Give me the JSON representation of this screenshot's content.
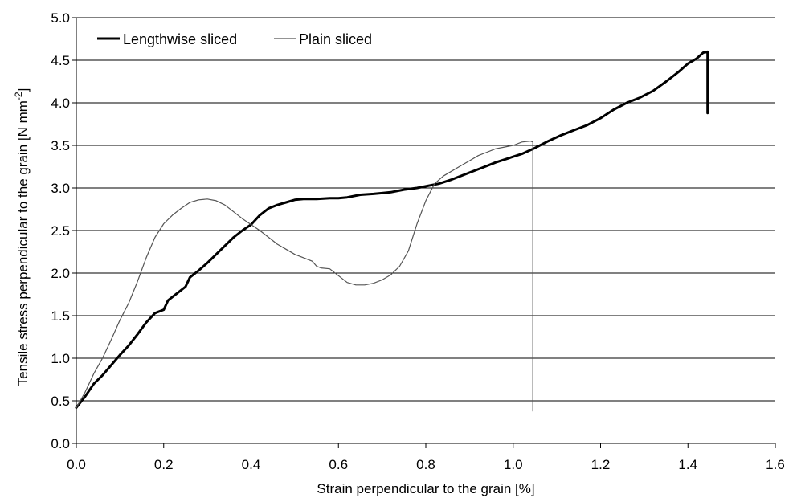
{
  "chart_data": {
    "type": "line",
    "xlabel": "Strain perpendicular to the grain [%]",
    "ylabel_main": "Tensile stress perpendicular to the grain [N mm",
    "ylabel_sup": "-2",
    "ylabel_end": "]",
    "xlim": [
      0,
      1.6
    ],
    "ylim": [
      0,
      5.0
    ],
    "x_ticks": [
      "0.0",
      "0.2",
      "0.4",
      "0.6",
      "0.8",
      "1.0",
      "1.2",
      "1.4",
      "1.6"
    ],
    "y_ticks": [
      "0.0",
      "0.5",
      "1.0",
      "1.5",
      "2.0",
      "2.5",
      "3.0",
      "3.5",
      "4.0",
      "4.5",
      "5.0"
    ],
    "grid": "horizontal",
    "legend_position": "top-left",
    "series": [
      {
        "name": "Lengthwise sliced",
        "color": "#000000",
        "style": "thick",
        "points": [
          [
            0.0,
            0.42
          ],
          [
            0.02,
            0.55
          ],
          [
            0.04,
            0.7
          ],
          [
            0.06,
            0.8
          ],
          [
            0.08,
            0.92
          ],
          [
            0.1,
            1.04
          ],
          [
            0.12,
            1.15
          ],
          [
            0.14,
            1.28
          ],
          [
            0.16,
            1.42
          ],
          [
            0.18,
            1.53
          ],
          [
            0.2,
            1.57
          ],
          [
            0.21,
            1.68
          ],
          [
            0.23,
            1.76
          ],
          [
            0.25,
            1.84
          ],
          [
            0.26,
            1.95
          ],
          [
            0.28,
            2.03
          ],
          [
            0.3,
            2.12
          ],
          [
            0.32,
            2.22
          ],
          [
            0.34,
            2.32
          ],
          [
            0.36,
            2.42
          ],
          [
            0.38,
            2.5
          ],
          [
            0.4,
            2.57
          ],
          [
            0.42,
            2.68
          ],
          [
            0.44,
            2.76
          ],
          [
            0.46,
            2.8
          ],
          [
            0.48,
            2.83
          ],
          [
            0.5,
            2.86
          ],
          [
            0.52,
            2.87
          ],
          [
            0.55,
            2.87
          ],
          [
            0.58,
            2.88
          ],
          [
            0.6,
            2.88
          ],
          [
            0.62,
            2.89
          ],
          [
            0.65,
            2.92
          ],
          [
            0.68,
            2.93
          ],
          [
            0.7,
            2.94
          ],
          [
            0.72,
            2.95
          ],
          [
            0.75,
            2.98
          ],
          [
            0.78,
            3.0
          ],
          [
            0.8,
            3.02
          ],
          [
            0.83,
            3.05
          ],
          [
            0.86,
            3.1
          ],
          [
            0.9,
            3.18
          ],
          [
            0.93,
            3.24
          ],
          [
            0.96,
            3.3
          ],
          [
            0.99,
            3.35
          ],
          [
            1.02,
            3.4
          ],
          [
            1.05,
            3.47
          ],
          [
            1.08,
            3.55
          ],
          [
            1.11,
            3.62
          ],
          [
            1.14,
            3.68
          ],
          [
            1.17,
            3.74
          ],
          [
            1.2,
            3.82
          ],
          [
            1.23,
            3.92
          ],
          [
            1.26,
            4.0
          ],
          [
            1.29,
            4.06
          ],
          [
            1.32,
            4.14
          ],
          [
            1.35,
            4.25
          ],
          [
            1.38,
            4.37
          ],
          [
            1.4,
            4.46
          ],
          [
            1.42,
            4.52
          ],
          [
            1.435,
            4.59
          ],
          [
            1.445,
            4.6
          ],
          [
            1.445,
            3.88
          ]
        ]
      },
      {
        "name": "Plain sliced",
        "color": "#555555",
        "style": "thin",
        "points": [
          [
            0.0,
            0.42
          ],
          [
            0.02,
            0.6
          ],
          [
            0.04,
            0.82
          ],
          [
            0.06,
            1.0
          ],
          [
            0.08,
            1.22
          ],
          [
            0.1,
            1.45
          ],
          [
            0.12,
            1.65
          ],
          [
            0.14,
            1.9
          ],
          [
            0.16,
            2.18
          ],
          [
            0.18,
            2.42
          ],
          [
            0.2,
            2.58
          ],
          [
            0.22,
            2.68
          ],
          [
            0.24,
            2.76
          ],
          [
            0.26,
            2.83
          ],
          [
            0.28,
            2.86
          ],
          [
            0.3,
            2.87
          ],
          [
            0.32,
            2.85
          ],
          [
            0.34,
            2.8
          ],
          [
            0.36,
            2.72
          ],
          [
            0.38,
            2.64
          ],
          [
            0.4,
            2.57
          ],
          [
            0.42,
            2.5
          ],
          [
            0.44,
            2.42
          ],
          [
            0.46,
            2.34
          ],
          [
            0.48,
            2.28
          ],
          [
            0.5,
            2.22
          ],
          [
            0.52,
            2.18
          ],
          [
            0.54,
            2.14
          ],
          [
            0.55,
            2.08
          ],
          [
            0.56,
            2.06
          ],
          [
            0.58,
            2.05
          ],
          [
            0.6,
            1.97
          ],
          [
            0.62,
            1.89
          ],
          [
            0.64,
            1.86
          ],
          [
            0.66,
            1.86
          ],
          [
            0.68,
            1.88
          ],
          [
            0.7,
            1.92
          ],
          [
            0.72,
            1.98
          ],
          [
            0.74,
            2.08
          ],
          [
            0.76,
            2.26
          ],
          [
            0.78,
            2.58
          ],
          [
            0.8,
            2.85
          ],
          [
            0.82,
            3.05
          ],
          [
            0.84,
            3.14
          ],
          [
            0.86,
            3.2
          ],
          [
            0.88,
            3.26
          ],
          [
            0.9,
            3.32
          ],
          [
            0.92,
            3.38
          ],
          [
            0.94,
            3.42
          ],
          [
            0.96,
            3.46
          ],
          [
            0.98,
            3.48
          ],
          [
            1.0,
            3.5
          ],
          [
            1.02,
            3.54
          ],
          [
            1.04,
            3.55
          ],
          [
            1.045,
            3.54
          ],
          [
            1.045,
            0.38
          ]
        ]
      }
    ]
  }
}
